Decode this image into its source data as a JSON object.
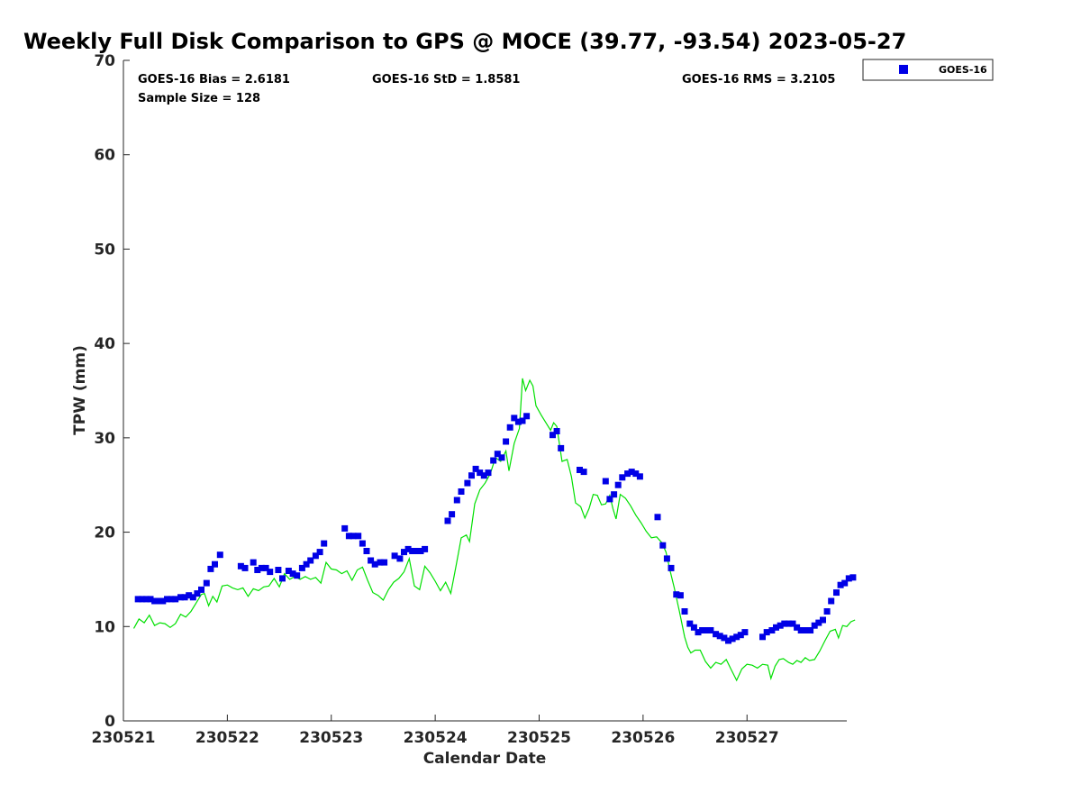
{
  "chart_data": {
    "type": "scatter",
    "title": "Weekly Full Disk Comparison to GPS @ MOCE (39.77, -93.54) 2023-05-27",
    "xlabel": "Calendar Date",
    "ylabel": "TPW (mm)",
    "x_unit": "days since 230521 00Z",
    "xlim": [
      0,
      6.96
    ],
    "ylim": [
      0,
      70
    ],
    "x_ticks": [
      {
        "value": 0,
        "label": "230521"
      },
      {
        "value": 1,
        "label": "230522"
      },
      {
        "value": 2,
        "label": "230523"
      },
      {
        "value": 3,
        "label": "230524"
      },
      {
        "value": 4,
        "label": "230525"
      },
      {
        "value": 5,
        "label": "230526"
      },
      {
        "value": 6,
        "label": "230527"
      }
    ],
    "y_ticks": [
      {
        "value": 0,
        "label": "0"
      },
      {
        "value": 10,
        "label": "10"
      },
      {
        "value": 20,
        "label": "20"
      },
      {
        "value": 30,
        "label": "30"
      },
      {
        "value": 40,
        "label": "40"
      },
      {
        "value": 50,
        "label": "50"
      },
      {
        "value": 60,
        "label": "60"
      },
      {
        "value": 70,
        "label": "70"
      }
    ],
    "grid": false,
    "legend": {
      "position": "top-right",
      "entries": [
        "GOES-16"
      ]
    },
    "stats": {
      "bias": "GOES-16 Bias = 2.6181",
      "std": "GOES-16 StD = 1.8581",
      "rms": "GOES-16 RMS = 3.2105",
      "sample": "Sample Size = 128"
    },
    "series": [
      {
        "name": "GOES-16",
        "type": "scatter",
        "marker": "square",
        "color": "#0000e6",
        "points": [
          [
            0.14,
            12.9
          ],
          [
            0.18,
            12.9
          ],
          [
            0.22,
            12.9
          ],
          [
            0.26,
            12.9
          ],
          [
            0.3,
            12.7
          ],
          [
            0.34,
            12.7
          ],
          [
            0.38,
            12.7
          ],
          [
            0.42,
            12.9
          ],
          [
            0.46,
            12.9
          ],
          [
            0.5,
            12.9
          ],
          [
            0.55,
            13.1
          ],
          [
            0.59,
            13.1
          ],
          [
            0.63,
            13.3
          ],
          [
            0.67,
            13.1
          ],
          [
            0.71,
            13.5
          ],
          [
            0.75,
            13.9
          ],
          [
            0.8,
            14.6
          ],
          [
            0.84,
            16.1
          ],
          [
            0.88,
            16.6
          ],
          [
            0.93,
            17.6
          ],
          [
            1.13,
            16.4
          ],
          [
            1.17,
            16.2
          ],
          [
            1.25,
            16.8
          ],
          [
            1.29,
            16.0
          ],
          [
            1.33,
            16.2
          ],
          [
            1.37,
            16.2
          ],
          [
            1.41,
            15.8
          ],
          [
            1.49,
            16.0
          ],
          [
            1.53,
            15.1
          ],
          [
            1.59,
            15.9
          ],
          [
            1.63,
            15.6
          ],
          [
            1.67,
            15.4
          ],
          [
            1.72,
            16.2
          ],
          [
            1.76,
            16.6
          ],
          [
            1.8,
            17.0
          ],
          [
            1.85,
            17.5
          ],
          [
            1.89,
            17.9
          ],
          [
            1.93,
            18.8
          ],
          [
            2.13,
            20.4
          ],
          [
            2.17,
            19.6
          ],
          [
            2.21,
            19.6
          ],
          [
            2.26,
            19.6
          ],
          [
            2.3,
            18.8
          ],
          [
            2.34,
            18.0
          ],
          [
            2.38,
            17.0
          ],
          [
            2.42,
            16.6
          ],
          [
            2.47,
            16.8
          ],
          [
            2.51,
            16.8
          ],
          [
            2.61,
            17.5
          ],
          [
            2.66,
            17.2
          ],
          [
            2.7,
            17.9
          ],
          [
            2.74,
            18.2
          ],
          [
            2.78,
            18.0
          ],
          [
            2.82,
            18.0
          ],
          [
            2.86,
            18.0
          ],
          [
            2.9,
            18.2
          ],
          [
            3.12,
            21.2
          ],
          [
            3.16,
            21.9
          ],
          [
            3.21,
            23.4
          ],
          [
            3.25,
            24.3
          ],
          [
            3.31,
            25.2
          ],
          [
            3.35,
            26.0
          ],
          [
            3.39,
            26.7
          ],
          [
            3.43,
            26.3
          ],
          [
            3.47,
            26.0
          ],
          [
            3.51,
            26.3
          ],
          [
            3.56,
            27.6
          ],
          [
            3.6,
            28.3
          ],
          [
            3.64,
            27.9
          ],
          [
            3.68,
            29.6
          ],
          [
            3.72,
            31.1
          ],
          [
            3.76,
            32.1
          ],
          [
            3.8,
            31.7
          ],
          [
            3.84,
            31.8
          ],
          [
            3.88,
            32.3
          ],
          [
            4.13,
            30.3
          ],
          [
            4.17,
            30.7
          ],
          [
            4.21,
            28.9
          ],
          [
            4.39,
            26.6
          ],
          [
            4.43,
            26.4
          ],
          [
            4.64,
            25.4
          ],
          [
            4.68,
            23.5
          ],
          [
            4.72,
            24.0
          ],
          [
            4.76,
            25.0
          ],
          [
            4.8,
            25.8
          ],
          [
            4.85,
            26.2
          ],
          [
            4.89,
            26.4
          ],
          [
            4.93,
            26.2
          ],
          [
            4.97,
            25.9
          ],
          [
            5.14,
            21.6
          ],
          [
            5.19,
            18.6
          ],
          [
            5.23,
            17.2
          ],
          [
            5.27,
            16.2
          ],
          [
            5.32,
            13.4
          ],
          [
            5.36,
            13.3
          ],
          [
            5.4,
            11.6
          ],
          [
            5.45,
            10.3
          ],
          [
            5.49,
            9.9
          ],
          [
            5.53,
            9.4
          ],
          [
            5.57,
            9.6
          ],
          [
            5.61,
            9.6
          ],
          [
            5.65,
            9.6
          ],
          [
            5.7,
            9.2
          ],
          [
            5.74,
            9.0
          ],
          [
            5.78,
            8.8
          ],
          [
            5.82,
            8.5
          ],
          [
            5.86,
            8.7
          ],
          [
            5.9,
            8.9
          ],
          [
            5.94,
            9.1
          ],
          [
            5.98,
            9.4
          ],
          [
            6.15,
            8.9
          ],
          [
            6.19,
            9.4
          ],
          [
            6.24,
            9.6
          ],
          [
            6.28,
            9.9
          ],
          [
            6.32,
            10.1
          ],
          [
            6.36,
            10.3
          ],
          [
            6.4,
            10.3
          ],
          [
            6.44,
            10.3
          ],
          [
            6.48,
            9.9
          ],
          [
            6.52,
            9.6
          ],
          [
            6.57,
            9.6
          ],
          [
            6.61,
            9.6
          ],
          [
            6.65,
            10.1
          ],
          [
            6.69,
            10.4
          ],
          [
            6.73,
            10.7
          ],
          [
            6.77,
            11.6
          ],
          [
            6.81,
            12.7
          ],
          [
            6.86,
            13.6
          ],
          [
            6.9,
            14.4
          ],
          [
            6.94,
            14.6
          ],
          [
            6.98,
            15.1
          ],
          [
            7.02,
            15.2
          ]
        ]
      },
      {
        "name": "GPS",
        "type": "line",
        "color": "#00e000",
        "points": [
          [
            0.1,
            9.8
          ],
          [
            0.15,
            10.8
          ],
          [
            0.2,
            10.4
          ],
          [
            0.25,
            11.2
          ],
          [
            0.3,
            10.1
          ],
          [
            0.35,
            10.4
          ],
          [
            0.4,
            10.3
          ],
          [
            0.45,
            9.9
          ],
          [
            0.5,
            10.3
          ],
          [
            0.55,
            11.3
          ],
          [
            0.6,
            11.0
          ],
          [
            0.65,
            11.6
          ],
          [
            0.7,
            12.5
          ],
          [
            0.75,
            13.4
          ],
          [
            0.78,
            13.5
          ],
          [
            0.82,
            12.2
          ],
          [
            0.86,
            13.2
          ],
          [
            0.9,
            12.6
          ],
          [
            0.95,
            14.3
          ],
          [
            1.0,
            14.4
          ],
          [
            1.05,
            14.1
          ],
          [
            1.1,
            13.9
          ],
          [
            1.15,
            14.1
          ],
          [
            1.2,
            13.2
          ],
          [
            1.25,
            14.0
          ],
          [
            1.3,
            13.8
          ],
          [
            1.35,
            14.2
          ],
          [
            1.4,
            14.3
          ],
          [
            1.45,
            15.1
          ],
          [
            1.5,
            14.2
          ],
          [
            1.55,
            15.6
          ],
          [
            1.6,
            15.0
          ],
          [
            1.65,
            15.3
          ],
          [
            1.7,
            15.0
          ],
          [
            1.75,
            15.3
          ],
          [
            1.8,
            15.0
          ],
          [
            1.85,
            15.2
          ],
          [
            1.9,
            14.6
          ],
          [
            1.95,
            16.8
          ],
          [
            2.0,
            16.1
          ],
          [
            2.05,
            16.0
          ],
          [
            2.1,
            15.6
          ],
          [
            2.15,
            15.9
          ],
          [
            2.2,
            14.9
          ],
          [
            2.25,
            16.0
          ],
          [
            2.3,
            16.3
          ],
          [
            2.35,
            14.9
          ],
          [
            2.4,
            13.6
          ],
          [
            2.45,
            13.3
          ],
          [
            2.5,
            12.8
          ],
          [
            2.55,
            13.9
          ],
          [
            2.6,
            14.7
          ],
          [
            2.65,
            15.1
          ],
          [
            2.7,
            15.8
          ],
          [
            2.75,
            17.2
          ],
          [
            2.8,
            14.3
          ],
          [
            2.85,
            13.9
          ],
          [
            2.9,
            16.4
          ],
          [
            2.95,
            15.7
          ],
          [
            3.0,
            14.8
          ],
          [
            3.05,
            13.8
          ],
          [
            3.1,
            14.7
          ],
          [
            3.15,
            13.5
          ],
          [
            3.2,
            16.4
          ],
          [
            3.25,
            19.4
          ],
          [
            3.3,
            19.7
          ],
          [
            3.33,
            19.0
          ],
          [
            3.38,
            23.0
          ],
          [
            3.43,
            24.5
          ],
          [
            3.48,
            25.2
          ],
          [
            3.53,
            26.2
          ],
          [
            3.58,
            27.9
          ],
          [
            3.63,
            27.5
          ],
          [
            3.68,
            28.6
          ],
          [
            3.71,
            26.5
          ],
          [
            3.76,
            29.4
          ],
          [
            3.81,
            31.0
          ],
          [
            3.84,
            36.3
          ],
          [
            3.87,
            35.0
          ],
          [
            3.91,
            36.1
          ],
          [
            3.94,
            35.5
          ],
          [
            3.97,
            33.4
          ],
          [
            4.02,
            32.4
          ],
          [
            4.07,
            31.5
          ],
          [
            4.11,
            30.8
          ],
          [
            4.14,
            31.6
          ],
          [
            4.17,
            31.2
          ],
          [
            4.22,
            27.5
          ],
          [
            4.27,
            27.7
          ],
          [
            4.31,
            25.9
          ],
          [
            4.35,
            23.1
          ],
          [
            4.4,
            22.7
          ],
          [
            4.44,
            21.5
          ],
          [
            4.48,
            22.5
          ],
          [
            4.52,
            24.0
          ],
          [
            4.56,
            23.9
          ],
          [
            4.6,
            22.9
          ],
          [
            4.64,
            23.0
          ],
          [
            4.68,
            23.9
          ],
          [
            4.71,
            22.5
          ],
          [
            4.74,
            21.4
          ],
          [
            4.78,
            24.0
          ],
          [
            4.83,
            23.6
          ],
          [
            4.88,
            22.8
          ],
          [
            4.93,
            21.8
          ],
          [
            4.98,
            21.0
          ],
          [
            5.03,
            20.1
          ],
          [
            5.08,
            19.4
          ],
          [
            5.13,
            19.5
          ],
          [
            5.18,
            18.9
          ],
          [
            5.22,
            17.9
          ],
          [
            5.26,
            15.9
          ],
          [
            5.3,
            14.1
          ],
          [
            5.35,
            11.6
          ],
          [
            5.4,
            8.9
          ],
          [
            5.43,
            7.8
          ],
          [
            5.46,
            7.2
          ],
          [
            5.5,
            7.5
          ],
          [
            5.55,
            7.5
          ],
          [
            5.6,
            6.3
          ],
          [
            5.65,
            5.6
          ],
          [
            5.7,
            6.2
          ],
          [
            5.75,
            6.0
          ],
          [
            5.8,
            6.5
          ],
          [
            5.85,
            5.4
          ],
          [
            5.9,
            4.3
          ],
          [
            5.95,
            5.5
          ],
          [
            6.0,
            6.0
          ],
          [
            6.05,
            5.9
          ],
          [
            6.1,
            5.6
          ],
          [
            6.15,
            6.0
          ],
          [
            6.2,
            5.9
          ],
          [
            6.23,
            4.5
          ],
          [
            6.27,
            5.8
          ],
          [
            6.31,
            6.5
          ],
          [
            6.35,
            6.6
          ],
          [
            6.4,
            6.2
          ],
          [
            6.44,
            6.0
          ],
          [
            6.48,
            6.4
          ],
          [
            6.52,
            6.2
          ],
          [
            6.56,
            6.7
          ],
          [
            6.6,
            6.4
          ],
          [
            6.65,
            6.5
          ],
          [
            6.7,
            7.4
          ],
          [
            6.75,
            8.5
          ],
          [
            6.8,
            9.5
          ],
          [
            6.85,
            9.7
          ],
          [
            6.88,
            8.8
          ],
          [
            6.92,
            10.1
          ],
          [
            6.96,
            10.0
          ],
          [
            7.0,
            10.5
          ],
          [
            7.04,
            10.7
          ]
        ]
      }
    ]
  }
}
